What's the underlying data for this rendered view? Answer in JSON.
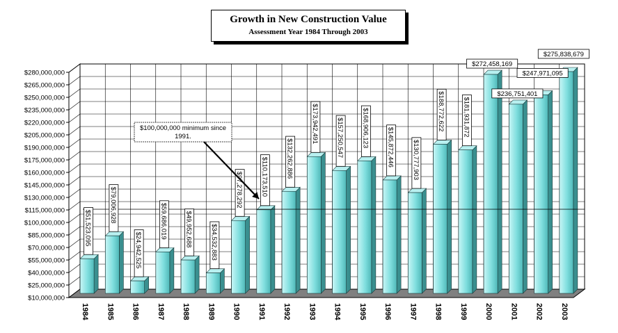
{
  "chart_data": {
    "type": "bar",
    "title": "Growth in New Construction Value",
    "subtitle": "Assessment Year 1984 Through 2003",
    "xlabel": "",
    "ylabel": "",
    "ylim": [
      10000000,
      280000000
    ],
    "grid": true,
    "legend": "none",
    "categories": [
      "1984",
      "1985",
      "1986",
      "1987",
      "1988",
      "1989",
      "1990",
      "1991",
      "1992",
      "1993",
      "1994",
      "1995",
      "1996",
      "1997",
      "1998",
      "1999",
      "2000",
      "2001",
      "2002",
      "2003"
    ],
    "values": [
      51523095,
      79006928,
      24942525,
      59686019,
      49952688,
      34532883,
      97278292,
      110173510,
      132262886,
      173942491,
      157250547,
      168906123,
      145872446,
      130777903,
      188772622,
      181931872,
      272458169,
      236751401,
      247971095,
      275838679
    ],
    "data_labels": [
      "$51,523,095",
      "$79,006,928",
      "$24,942,525",
      "$59,686,019",
      "$49,952,688",
      "$34,532,883",
      "$97,278,292",
      "$110,173,510",
      "$132,262,886",
      "$173,942,491",
      "$157,250,547",
      "$168,906,123",
      "$145,872,446",
      "$130,777,903",
      "$188,772,622",
      "$181,931,872",
      "$272,458,169",
      "$236,751,401",
      "$247,971,095",
      "$275,838,679"
    ],
    "y_tick_labels": [
      "$10,000,000",
      "$25,000,000",
      "$40,000,000",
      "$55,000,000",
      "$70,000,000",
      "$85,000,000",
      "$100,000,000",
      "$115,000,000",
      "$130,000,000",
      "$145,000,000",
      "$160,000,000",
      "$175,000,000",
      "$190,000,000",
      "$205,000,000",
      "$220,000,000",
      "$235,000,000",
      "$250,000,000",
      "$265,000,000",
      "$280,000,000"
    ],
    "y_tick_values": [
      10000000,
      25000000,
      40000000,
      55000000,
      70000000,
      85000000,
      100000000,
      115000000,
      130000000,
      145000000,
      160000000,
      175000000,
      190000000,
      205000000,
      220000000,
      235000000,
      250000000,
      265000000,
      280000000
    ],
    "reference_line": {
      "value": 100000000
    },
    "annotation": {
      "text_line1": "$100,000,000 minimum since",
      "text_line2": "1991."
    },
    "colors": {
      "bar_face": "#7fdede",
      "bar_side": "#3a8f8f",
      "bar_top": "#b8f0f0",
      "floor": "#808080",
      "grid": "#000000"
    }
  }
}
